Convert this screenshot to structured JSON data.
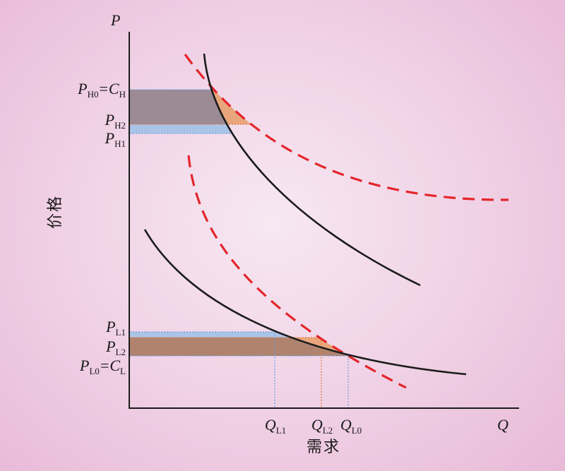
{
  "axes": {
    "y_symbol": "P",
    "x_symbol": "Q",
    "y_title": "价格",
    "x_title": "需求"
  },
  "price_labels": {
    "p_h0": {
      "symbol": "P",
      "sub": "H0",
      "eq": "=",
      "eq_symbol": "C",
      "eq_sub": "H"
    },
    "p_h2": {
      "symbol": "P",
      "sub": "H2"
    },
    "p_h1": {
      "symbol": "P",
      "sub": "H1"
    },
    "p_l1": {
      "symbol": "P",
      "sub": "L1"
    },
    "p_l2": {
      "symbol": "P",
      "sub": "L2"
    },
    "p_l0": {
      "symbol": "P",
      "sub": "L0",
      "eq": "=",
      "eq_symbol": "C",
      "eq_sub": "L"
    }
  },
  "quantity_labels": {
    "q_l1": {
      "symbol": "Q",
      "sub": "L1"
    },
    "q_l2": {
      "symbol": "Q",
      "sub": "L2"
    },
    "q_l0": {
      "symbol": "Q",
      "sub": "L0"
    }
  },
  "colors": {
    "solid_curve": "#1b1b1b",
    "dashed_curve": "#e3262b",
    "axis": "#1b1b1b",
    "shaded_gray": "#9c8a95",
    "shaded_brown": "#b0836f",
    "shaded_orange": "#e9a67d",
    "shaded_blue": "#aac4e8",
    "guide_blue": "#6d9fdc",
    "guide_orange": "#e07a3e"
  }
}
